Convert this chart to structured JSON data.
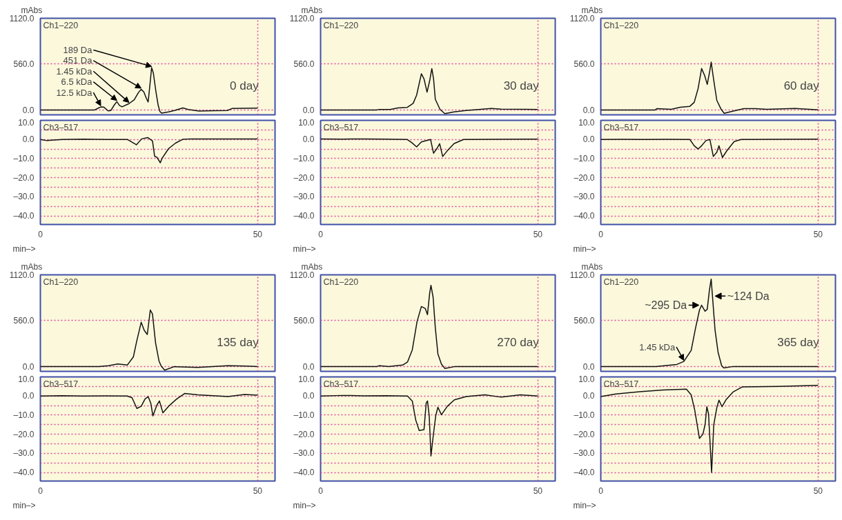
{
  "chart_data": [
    {
      "type": "line",
      "title": "Ch1–220",
      "ylabel": "mAbs",
      "annotations": [
        "0 day",
        {
          "text": "189 Da",
          "x": 25.6,
          "y": 517
        },
        {
          "text": "451 Da",
          "x": 23.2,
          "y": 251
        },
        {
          "text": "1.45 kDa",
          "x": 20.4,
          "y": 77
        },
        {
          "text": "6.5 kDa",
          "x": 17.6,
          "y": 101
        },
        {
          "text": "12.5 kDa",
          "x": 13.9,
          "y": 36
        }
      ],
      "x": [
        0,
        12.5,
        13.4,
        13.9,
        14.6,
        15.6,
        16.2,
        17.0,
        17.6,
        18.2,
        18.8,
        20.4,
        21.6,
        22.6,
        23.2,
        23.8,
        24.4,
        24.8,
        25.2,
        25.6,
        26.0,
        26.6,
        27.1,
        27.5,
        27.9,
        29.5,
        31,
        32.8,
        34,
        36.5,
        40,
        43,
        44.1,
        47,
        50
      ],
      "series": [
        {
          "color": "#111111",
          "values": [
            0,
            0,
            24,
            36,
            34,
            -12,
            -8,
            60,
            101,
            55,
            38,
            77,
            125,
            215,
            251,
            220,
            140,
            97,
            300,
            517,
            450,
            222,
            60,
            -19,
            -39,
            -24,
            -5,
            24,
            5,
            -14,
            -10,
            -7,
            17,
            20,
            22
          ]
        }
      ],
      "xlim": [
        0,
        54
      ],
      "ylim": [
        -60,
        1120
      ],
      "xticks": [
        0,
        50
      ],
      "yticks": [
        {
          "value": 0,
          "label": "0.0"
        },
        {
          "value": 560,
          "label": "560.0"
        },
        {
          "value": 1120,
          "label": "1120.0"
        }
      ],
      "grid": true,
      "tick_labels": "y"
    },
    {
      "type": "line",
      "title": "Ch3–517",
      "xlabel": "min–>",
      "x": [
        0,
        1.5,
        5,
        10,
        15,
        20,
        22.1,
        23.3,
        24.7,
        25.8,
        26.3,
        26.8,
        27.6,
        28,
        29.5,
        31.1,
        32.8,
        34.6,
        40,
        50
      ],
      "series": [
        {
          "color": "#111111",
          "values": [
            0,
            -0.6,
            0,
            0.2,
            0,
            0,
            -2.8,
            0.3,
            1,
            -0.8,
            -8.8,
            -9.3,
            -12.2,
            -9.9,
            -4.8,
            -1.9,
            0.1,
            0.3,
            0.3,
            0.3
          ]
        }
      ],
      "xlim": [
        0,
        54
      ],
      "ylim": [
        -44.5,
        10
      ],
      "xticks": [
        0,
        50
      ],
      "yticks": [
        {
          "value": 10,
          "label": "10.0"
        },
        {
          "value": 5,
          "label": null
        },
        {
          "value": 0,
          "label": "0.0"
        },
        {
          "value": -5,
          "label": null
        },
        {
          "value": -10,
          "label": "–10.0"
        },
        {
          "value": -15,
          "label": null
        },
        {
          "value": -20,
          "label": "–20.0"
        },
        {
          "value": -25,
          "label": null
        },
        {
          "value": -30,
          "label": "–30.0"
        },
        {
          "value": -35,
          "label": null
        },
        {
          "value": -40,
          "label": "–40.0"
        }
      ],
      "grid": true
    },
    {
      "type": "line",
      "title": "Ch1–220",
      "ylabel": "mAbs",
      "annotations": [
        "30 day"
      ],
      "x": [
        0,
        12.9,
        13.5,
        16,
        17.8,
        19.9,
        21.3,
        22.1,
        23.2,
        23.8,
        24.5,
        25.1,
        25.6,
        26.0,
        26.4,
        27.5,
        28.6,
        30.7,
        33.4,
        39.3,
        41.5,
        50
      ],
      "series": [
        {
          "color": "#111111",
          "values": [
            0,
            0,
            5,
            5,
            25,
            30,
            80,
            180,
            442,
            380,
            217,
            355,
            505,
            380,
            130,
            5,
            -45,
            -25,
            -8,
            17,
            10,
            5
          ]
        }
      ],
      "xlim": [
        0,
        54
      ],
      "ylim": [
        -60,
        1120
      ],
      "xticks": [
        0,
        50
      ],
      "yticks": [
        {
          "value": 0,
          "label": "0.0"
        },
        {
          "value": 560,
          "label": "560.0"
        },
        {
          "value": 1120,
          "label": "1120.0"
        }
      ],
      "grid": true,
      "tick_labels": "y"
    },
    {
      "type": "line",
      "title": "Ch3–517",
      "xlabel": "min–>",
      "x": [
        0,
        5,
        10,
        15,
        19.9,
        21,
        22.1,
        23.2,
        25.3,
        26,
        26.7,
        27.4,
        28.1,
        29.1,
        30.7,
        32.9,
        40,
        50
      ],
      "series": [
        {
          "color": "#111111",
          "values": [
            0.3,
            0.2,
            0.3,
            0.2,
            0,
            -1.7,
            -3.9,
            -1.3,
            0,
            -7.2,
            -5,
            -2.2,
            -8.9,
            -6.1,
            -2.2,
            0,
            0.1,
            0.2
          ]
        }
      ],
      "xlim": [
        0,
        54
      ],
      "ylim": [
        -44.5,
        10
      ],
      "xticks": [
        0,
        50
      ],
      "yticks": [
        {
          "value": 10,
          "label": "10.0"
        },
        {
          "value": 5,
          "label": null
        },
        {
          "value": 0,
          "label": "0.0"
        },
        {
          "value": -5,
          "label": null
        },
        {
          "value": -10,
          "label": "–10.0"
        },
        {
          "value": -15,
          "label": null
        },
        {
          "value": -20,
          "label": "–20.0"
        },
        {
          "value": -25,
          "label": null
        },
        {
          "value": -30,
          "label": "–30.0"
        },
        {
          "value": -35,
          "label": null
        },
        {
          "value": -40,
          "label": "–40.0"
        }
      ],
      "grid": true
    },
    {
      "type": "line",
      "title": "Ch1–220",
      "ylabel": "mAbs",
      "annotations": [
        "60 day"
      ],
      "x": [
        0,
        12.5,
        12.9,
        16.2,
        18.3,
        20.5,
        21.5,
        22.4,
        23.2,
        23.9,
        24.5,
        25.1,
        25.4,
        26.0,
        26.7,
        27.7,
        28.4,
        30.2,
        32.9,
        35.6,
        38.2,
        44.7,
        50
      ],
      "series": [
        {
          "color": "#111111",
          "values": [
            0,
            0,
            15,
            7,
            32,
            44,
            93,
            263,
            506,
            421,
            312,
            482,
            584,
            360,
            117,
            7,
            -41,
            -17,
            15,
            15,
            7,
            19,
            2
          ]
        }
      ],
      "xlim": [
        0,
        54
      ],
      "ylim": [
        -60,
        1120
      ],
      "xticks": [
        0,
        50
      ],
      "yticks": [
        {
          "value": 0,
          "label": "0.0"
        },
        {
          "value": 560,
          "label": "560.0"
        },
        {
          "value": 1120,
          "label": "1120.0"
        }
      ],
      "grid": true,
      "tick_labels": "y"
    },
    {
      "type": "line",
      "title": "Ch3–517",
      "xlabel": "min–>",
      "x": [
        0,
        5,
        10,
        15,
        20.5,
        21.5,
        22.4,
        23.2,
        24.2,
        25.1,
        25.9,
        26.7,
        27.2,
        28,
        29.1,
        30.7,
        32.3,
        40,
        50
      ],
      "series": [
        {
          "color": "#111111",
          "values": [
            0,
            0.1,
            0,
            0.1,
            0,
            -3.3,
            -5,
            -3.3,
            -0.6,
            0,
            -8.9,
            -6.7,
            -3.3,
            -9.4,
            -5.6,
            -1.1,
            0,
            0.1,
            0.2
          ]
        }
      ],
      "xlim": [
        0,
        54
      ],
      "ylim": [
        -44.5,
        10
      ],
      "xticks": [
        0,
        50
      ],
      "yticks": [
        {
          "value": 10,
          "label": "10.0"
        },
        {
          "value": 5,
          "label": null
        },
        {
          "value": 0,
          "label": "0.0"
        },
        {
          "value": -5,
          "label": null
        },
        {
          "value": -10,
          "label": "–10.0"
        },
        {
          "value": -15,
          "label": null
        },
        {
          "value": -20,
          "label": "–20.0"
        },
        {
          "value": -25,
          "label": null
        },
        {
          "value": -30,
          "label": "–30.0"
        },
        {
          "value": -35,
          "label": null
        },
        {
          "value": -40,
          "label": "–40.0"
        }
      ],
      "grid": true
    },
    {
      "type": "line",
      "title": "Ch1–220",
      "ylabel": "mAbs",
      "annotations": [
        "135 day"
      ],
      "x": [
        0,
        13.5,
        15.7,
        17.8,
        20,
        21.4,
        22.2,
        23.2,
        23.9,
        24.6,
        25.3,
        25.8,
        26.5,
        27.3,
        27.8,
        28.6,
        30.8,
        36.2,
        43.2,
        47,
        50
      ],
      "series": [
        {
          "color": "#111111",
          "values": [
            0,
            0,
            10,
            30,
            17,
            117,
            316,
            540,
            441,
            391,
            690,
            640,
            291,
            67,
            5,
            -45,
            -2,
            -12,
            10,
            5,
            -2
          ]
        }
      ],
      "xlim": [
        0,
        54
      ],
      "ylim": [
        -60,
        1120
      ],
      "xticks": [
        0,
        50
      ],
      "yticks": [
        {
          "value": 0,
          "label": "0.0"
        },
        {
          "value": 560,
          "label": "560.0"
        },
        {
          "value": 1120,
          "label": "1120.0"
        }
      ],
      "grid": true,
      "tick_labels": "y"
    },
    {
      "type": "line",
      "title": "Ch3–517",
      "xlabel": "min–>",
      "x": [
        0,
        5,
        10,
        15,
        20,
        21.1,
        22.2,
        23.2,
        24.1,
        24.8,
        25.4,
        25.9,
        26.8,
        27.4,
        28.2,
        29.5,
        31.4,
        33.2,
        36.2,
        43.2,
        47,
        50
      ],
      "series": [
        {
          "color": "#111111",
          "values": [
            0,
            0.2,
            0,
            0.1,
            0,
            -0.9,
            -6.5,
            -5.4,
            -1.5,
            -0.3,
            -3.7,
            -10.4,
            -4.8,
            -2.6,
            -8.8,
            -5.4,
            -1.5,
            1.3,
            0.6,
            -0.3,
            0.8,
            0.4
          ]
        }
      ],
      "xlim": [
        0,
        54
      ],
      "ylim": [
        -44.5,
        10
      ],
      "xticks": [
        0,
        50
      ],
      "yticks": [
        {
          "value": 10,
          "label": "10.0"
        },
        {
          "value": 5,
          "label": null
        },
        {
          "value": 0,
          "label": "0.0"
        },
        {
          "value": -5,
          "label": null
        },
        {
          "value": -10,
          "label": "–10.0"
        },
        {
          "value": -15,
          "label": null
        },
        {
          "value": -20,
          "label": "–20.0"
        },
        {
          "value": -25,
          "label": null
        },
        {
          "value": -30,
          "label": "–30.0"
        },
        {
          "value": -35,
          "label": null
        },
        {
          "value": -40,
          "label": "–40.0"
        }
      ],
      "grid": true
    },
    {
      "type": "line",
      "title": "Ch1–220",
      "ylabel": "mAbs",
      "annotations": [
        "270 day"
      ],
      "x": [
        0,
        13,
        13.5,
        15.7,
        18.9,
        20,
        21.1,
        22.2,
        23.2,
        24.1,
        24.6,
        25.1,
        25.4,
        25.9,
        26.4,
        27,
        27.8,
        28.6,
        30.8,
        50
      ],
      "series": [
        {
          "color": "#111111",
          "values": [
            0,
            0,
            10,
            0,
            17,
            54,
            202,
            548,
            733,
            708,
            634,
            893,
            992,
            844,
            474,
            153,
            30,
            -25,
            -2,
            0
          ]
        }
      ],
      "xlim": [
        0,
        54
      ],
      "ylim": [
        -60,
        1120
      ],
      "xticks": [
        0,
        50
      ],
      "yticks": [
        {
          "value": 0,
          "label": "0.0"
        },
        {
          "value": 560,
          "label": "560.0"
        },
        {
          "value": 1120,
          "label": "1120.0"
        }
      ],
      "grid": true,
      "tick_labels": "y"
    },
    {
      "type": "line",
      "title": "Ch3–517",
      "xlabel": "min–>",
      "x": [
        0,
        5,
        10,
        15,
        20,
        21.1,
        21.9,
        22.7,
        23.8,
        24.3,
        24.6,
        25,
        25.4,
        25.9,
        26.5,
        27,
        27.8,
        29.2,
        30.8,
        33.5,
        37.8,
        41.6,
        46,
        50
      ],
      "series": [
        {
          "color": "#111111",
          "values": [
            0,
            0.3,
            0.1,
            0.2,
            0,
            -2.6,
            -12.6,
            -18.1,
            -17.6,
            -3.7,
            -2.6,
            -10.3,
            -31.4,
            -21.4,
            -10.3,
            -5.9,
            -9.8,
            -5.3,
            -2,
            -0.3,
            0.6,
            -0.6,
            0.6,
            0
          ]
        }
      ],
      "xlim": [
        0,
        54
      ],
      "ylim": [
        -44.5,
        10
      ],
      "xticks": [
        0,
        50
      ],
      "yticks": [
        {
          "value": 10,
          "label": "10.0"
        },
        {
          "value": 5,
          "label": null
        },
        {
          "value": 0,
          "label": "0.0"
        },
        {
          "value": -5,
          "label": null
        },
        {
          "value": -10,
          "label": "–10.0"
        },
        {
          "value": -15,
          "label": null
        },
        {
          "value": -20,
          "label": "–20.0"
        },
        {
          "value": -25,
          "label": null
        },
        {
          "value": -30,
          "label": "–30.0"
        },
        {
          "value": -35,
          "label": null
        },
        {
          "value": -40,
          "label": "–40.0"
        }
      ],
      "grid": true
    },
    {
      "type": "line",
      "title": "Ch1–220",
      "ylabel": "mAbs",
      "annotations": [
        "365 day",
        {
          "text": "~124 Da",
          "x": 25.7,
          "y": 860
        },
        {
          "text": "~295 Da",
          "x": 23.2,
          "y": 749
        },
        {
          "text": "1.45 kDa",
          "x": 19.1,
          "y": 61
        }
      ],
      "x": [
        0,
        12.7,
        17.5,
        19.1,
        20.8,
        21.8,
        22.7,
        23.2,
        24,
        24.5,
        25,
        25.4,
        25.7,
        26.3,
        27,
        27.8,
        28.3,
        30.5,
        50
      ],
      "series": [
        {
          "color": "#111111",
          "values": [
            0,
            0,
            25,
            61,
            196,
            467,
            688,
            749,
            675,
            700,
            933,
            1068,
            860,
            442,
            172,
            12,
            -17,
            0,
            0
          ]
        }
      ],
      "xlim": [
        0,
        54
      ],
      "ylim": [
        -60,
        1120
      ],
      "xticks": [
        0,
        50
      ],
      "yticks": [
        {
          "value": 0,
          "label": "0.0"
        },
        {
          "value": 560,
          "label": "560.0"
        },
        {
          "value": 1120,
          "label": "1120.0"
        }
      ],
      "grid": true,
      "tick_labels": "y"
    },
    {
      "type": "line",
      "title": "Ch3–517",
      "xlabel": "min–>",
      "x": [
        0,
        3.5,
        8.9,
        14.3,
        19.7,
        20.8,
        21.6,
        22.7,
        23.5,
        24,
        24.4,
        24.8,
        25.5,
        26,
        26.7,
        27.2,
        27.9,
        28.9,
        30.5,
        32.6,
        41.3,
        50
      ],
      "series": [
        {
          "color": "#111111",
          "values": [
            -0.3,
            1.1,
            2.2,
            3.1,
            3.6,
            0.6,
            -7.2,
            -22.2,
            -20,
            -15,
            -5.6,
            -9.4,
            -40,
            -15,
            -6.1,
            -2.2,
            -5.6,
            -1.7,
            2.2,
            4.8,
            5,
            5.6
          ]
        }
      ],
      "xlim": [
        0,
        54
      ],
      "ylim": [
        -44.5,
        10
      ],
      "xticks": [
        0,
        50
      ],
      "yticks": [
        {
          "value": 10,
          "label": "10.0"
        },
        {
          "value": 5,
          "label": null
        },
        {
          "value": 0,
          "label": "0.0"
        },
        {
          "value": -5,
          "label": null
        },
        {
          "value": -10,
          "label": "–10.0"
        },
        {
          "value": -15,
          "label": null
        },
        {
          "value": -20,
          "label": "–20.0"
        },
        {
          "value": -25,
          "label": null
        },
        {
          "value": -30,
          "label": "–30.0"
        },
        {
          "value": -35,
          "label": null
        },
        {
          "value": -40,
          "label": "–40.0"
        }
      ],
      "grid": true
    }
  ]
}
